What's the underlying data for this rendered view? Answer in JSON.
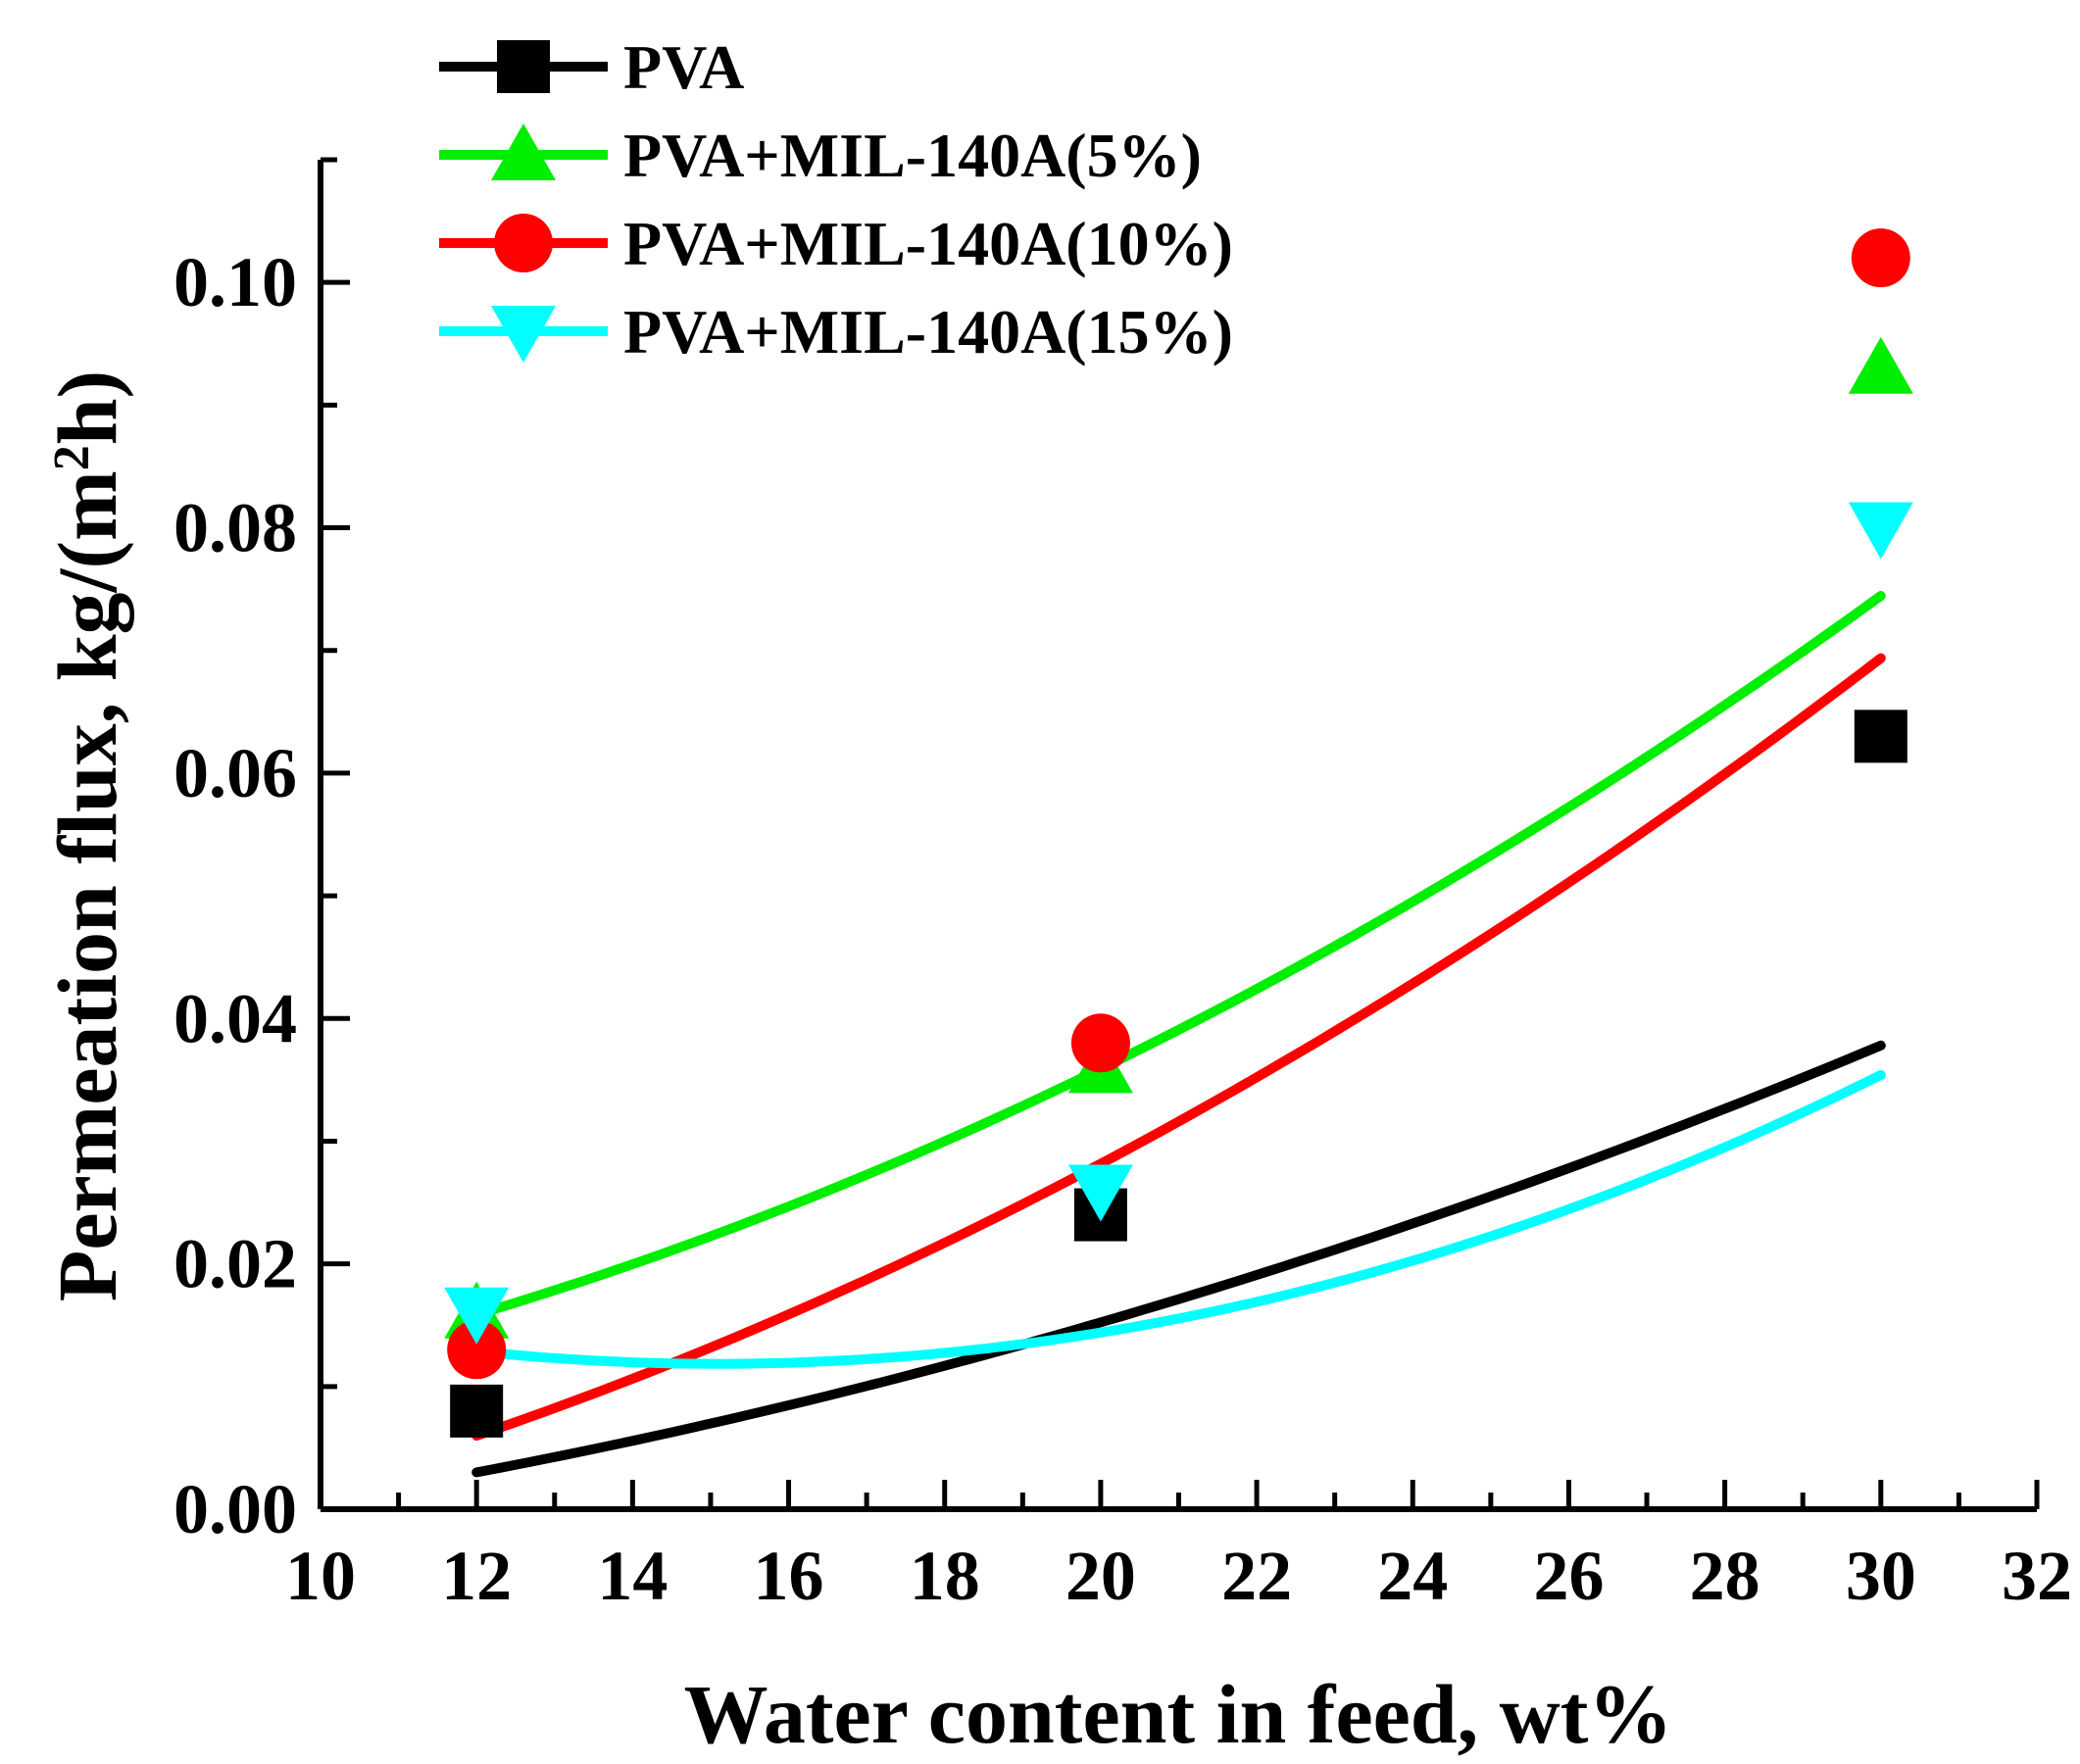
{
  "chart_data": {
    "type": "scatter",
    "xlabel": "Water content in feed, wt%",
    "ylabel": "Permeation flux, kg/(m2h)",
    "ylabel_parts": [
      "Permeation flux, kg/(m",
      "2",
      "h)"
    ],
    "xlim": [
      10,
      32
    ],
    "ylim": [
      0,
      0.11
    ],
    "x_ticks": [
      10,
      12,
      14,
      16,
      18,
      20,
      22,
      24,
      26,
      28,
      30,
      32
    ],
    "x_tick_labels": [
      "10",
      "12",
      "14",
      "16",
      "18",
      "20",
      "22",
      "24",
      "26",
      "28",
      "30",
      "32"
    ],
    "y_ticks": [
      0,
      0.02,
      0.04,
      0.06,
      0.08,
      0.1
    ],
    "y_tick_labels": [
      "0.00",
      "0.02",
      "0.04",
      "0.06",
      "0.08",
      "0.10"
    ],
    "legend_position": "top-left",
    "series": [
      {
        "name": "PVA",
        "marker": "square",
        "color": "#000000",
        "x": [
          12,
          20,
          30
        ],
        "y": [
          0.008,
          0.024,
          0.063
        ],
        "fit": [
          4.05e-05,
          0.000232,
          -0.00561
        ]
      },
      {
        "name": "PVA+MIL-140A(5%)",
        "marker": "triangle-up",
        "color": "#00ee00",
        "x": [
          12,
          20,
          30
        ],
        "y": [
          0.016,
          0.036,
          0.093
        ],
        "fit": [
          7.5e-05,
          0.000105,
          0.0038
        ]
      },
      {
        "name": "PVA+MIL-140A(10%)",
        "marker": "circle",
        "color": "#ff0000",
        "x": [
          12,
          20,
          30
        ],
        "y": [
          0.013,
          0.038,
          0.102
        ],
        "fit": [
          7.5e-05,
          0.000371,
          -0.00926
        ]
      },
      {
        "name": "PVA+MIL-140A(15%)",
        "marker": "triangle-down",
        "color": "#00ffff",
        "x": [
          12,
          20,
          30
        ],
        "y": [
          0.016,
          0.026,
          0.08
        ],
        "fit": [
          0.000106,
          -0.0032,
          0.036
        ]
      }
    ]
  }
}
